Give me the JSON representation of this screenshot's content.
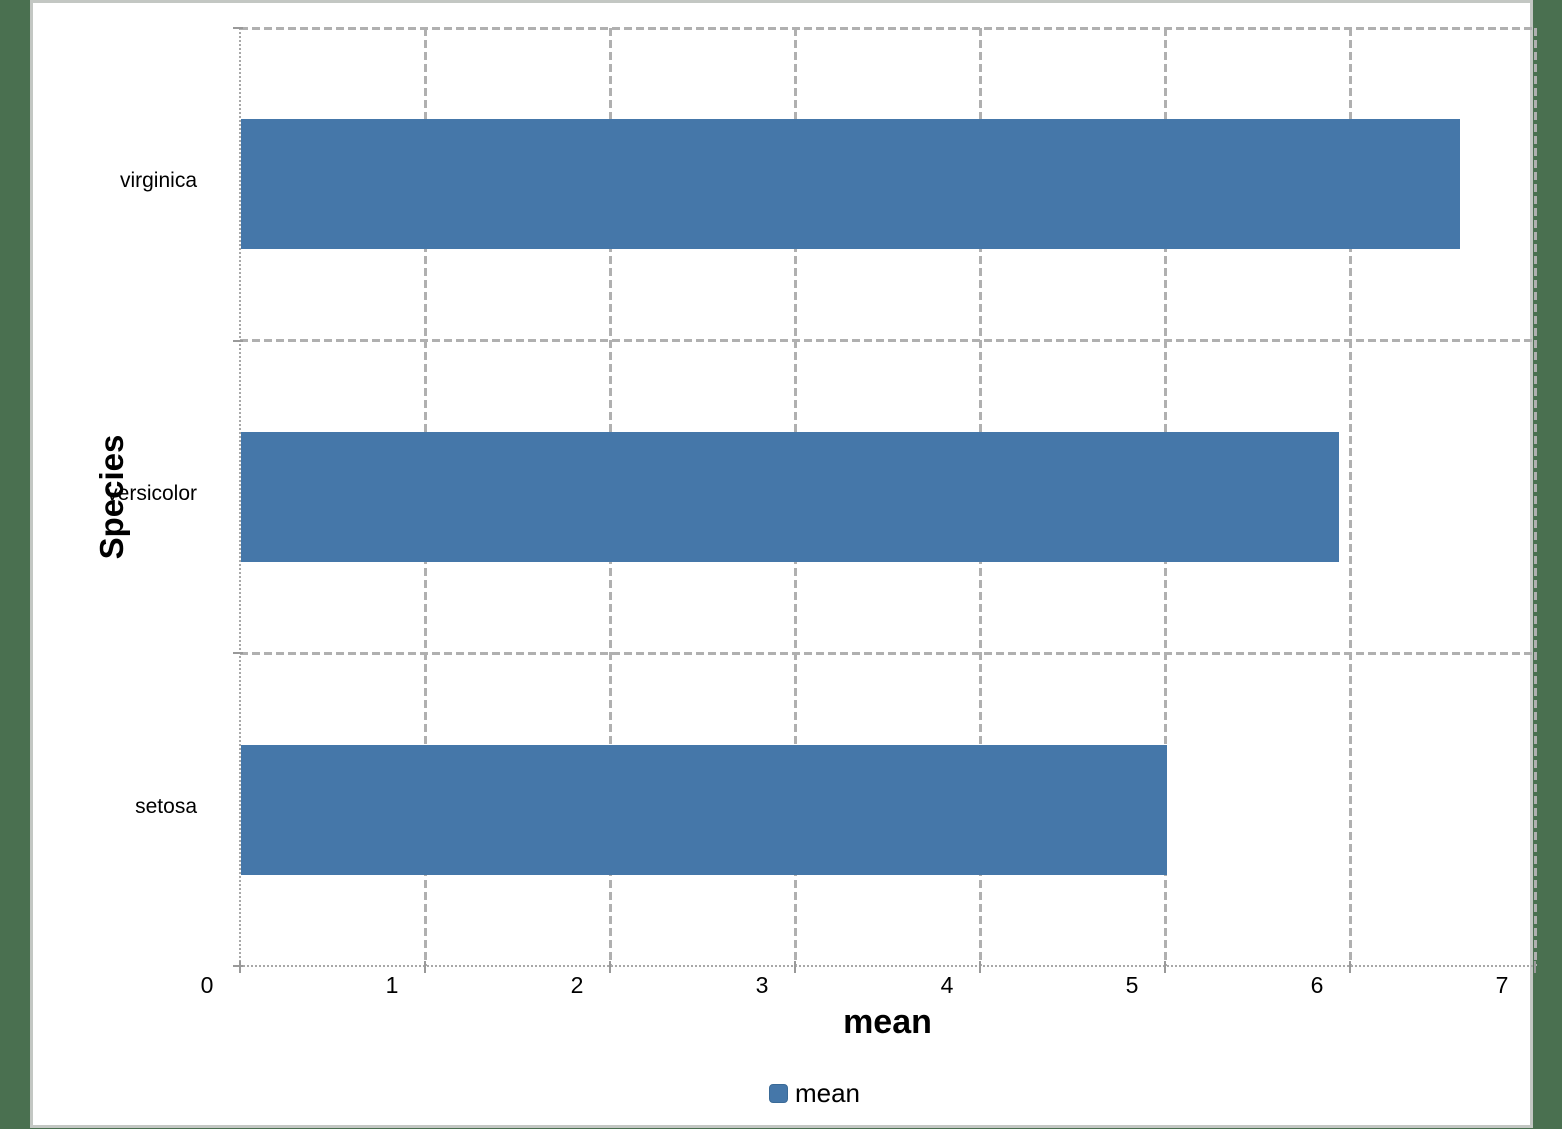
{
  "window": {
    "background_color": "#4a7050",
    "card_background": "#ffffff",
    "card_border_color": "#c3c7c3"
  },
  "chart_data": {
    "type": "bar",
    "orientation": "horizontal",
    "title": "",
    "xlabel": "mean",
    "ylabel": "Species",
    "series_name": "mean",
    "categories_top_to_bottom": [
      "virginica",
      "versicolor",
      "setosa"
    ],
    "values_top_to_bottom": [
      6.588,
      5.936,
      5.006
    ],
    "xlim": [
      0,
      7
    ],
    "x_ticks": [
      "0",
      "1",
      "2",
      "3",
      "4",
      "5",
      "6",
      "7"
    ],
    "grid": "dashed",
    "legend": {
      "position": "bottom-center",
      "entries": [
        {
          "label": "mean",
          "color": "#4577a9"
        }
      ]
    },
    "bar_color": "#4577a9",
    "gridline_color": "#b0b0b0",
    "axis_line_color": "#a8a8a8",
    "tick_color": "#999999",
    "text_color": "#000000"
  }
}
